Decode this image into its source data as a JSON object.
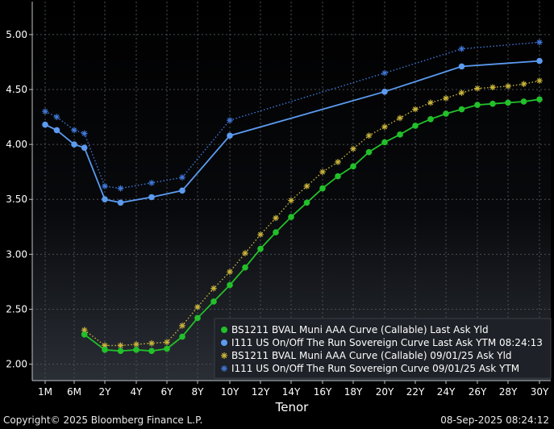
{
  "chart_data": {
    "type": "line",
    "xlabel": "Tenor",
    "ylabel": "",
    "ylim": [
      1.85,
      5.3
    ],
    "y_ticks": [
      2.0,
      2.5,
      3.0,
      3.5,
      4.0,
      4.5,
      5.0
    ],
    "x_tick_labels": [
      "1M",
      "6M",
      "2Y",
      "4Y",
      "6Y",
      "8Y",
      "10Y",
      "12Y",
      "14Y",
      "16Y",
      "18Y",
      "20Y",
      "22Y",
      "24Y",
      "26Y",
      "28Y",
      "30Y"
    ],
    "x_tick_years": [
      0.083,
      0.5,
      2,
      4,
      6,
      8,
      10,
      12,
      14,
      16,
      18,
      20,
      22,
      24,
      26,
      28,
      30
    ],
    "grid": true,
    "legend_position": "bottom-right",
    "series": [
      {
        "name": "BS1211 BVAL Muni AAA Curve (Callable) Last Ask Yld",
        "color": "#22c02a",
        "style": "solid-dot",
        "x": [
          1,
          2,
          3,
          4,
          5,
          6,
          7,
          8,
          9,
          10,
          11,
          12,
          13,
          14,
          15,
          16,
          17,
          18,
          19,
          20,
          21,
          22,
          23,
          24,
          25,
          26,
          27,
          28,
          29,
          30
        ],
        "y": [
          2.27,
          2.13,
          2.12,
          2.13,
          2.12,
          2.14,
          2.25,
          2.42,
          2.57,
          2.72,
          2.88,
          3.05,
          3.2,
          3.34,
          3.47,
          3.6,
          3.71,
          3.8,
          3.93,
          4.02,
          4.09,
          4.17,
          4.23,
          4.28,
          4.32,
          4.36,
          4.37,
          4.38,
          4.39,
          4.41
        ]
      },
      {
        "name": "I111 US On/Off The Run Sovereign Curve Last Ask YTM 08:24:13",
        "color": "#5b9bf0",
        "style": "solid-dot",
        "x": [
          0.083,
          0.25,
          0.5,
          1,
          2,
          3,
          5,
          7,
          10,
          20,
          25,
          30
        ],
        "y": [
          4.18,
          4.13,
          4.0,
          3.97,
          3.5,
          3.47,
          3.52,
          3.58,
          4.08,
          4.48,
          4.71,
          4.76
        ]
      },
      {
        "name": "BS1211 BVAL Muni AAA Curve (Callable) 09/01/25 Ask Yld",
        "color": "#c8b43c",
        "style": "dotted-star",
        "x": [
          1,
          2,
          3,
          4,
          5,
          6,
          7,
          8,
          9,
          10,
          11,
          12,
          13,
          14,
          15,
          16,
          17,
          18,
          19,
          20,
          21,
          22,
          23,
          24,
          25,
          26,
          27,
          28,
          29,
          30
        ],
        "y": [
          2.31,
          2.17,
          2.17,
          2.18,
          2.19,
          2.2,
          2.35,
          2.52,
          2.69,
          2.84,
          3.01,
          3.18,
          3.33,
          3.49,
          3.62,
          3.75,
          3.84,
          3.96,
          4.08,
          4.16,
          4.24,
          4.32,
          4.38,
          4.42,
          4.47,
          4.51,
          4.52,
          4.53,
          4.55,
          4.58
        ]
      },
      {
        "name": "I111 US On/Off The Run Sovereign Curve 09/01/25 Ask YTM",
        "color": "#3f78d8",
        "style": "dotted-star",
        "x": [
          0.083,
          0.25,
          0.5,
          1,
          2,
          3,
          5,
          7,
          10,
          20,
          25,
          30
        ],
        "y": [
          4.3,
          4.25,
          4.13,
          4.1,
          3.62,
          3.6,
          3.65,
          3.7,
          4.22,
          4.65,
          4.87,
          4.93
        ]
      }
    ]
  },
  "footer": {
    "copyright": "Copyright© 2025 Bloomberg Finance L.P.",
    "timestamp": "08-Sep-2025 08:24:12"
  }
}
